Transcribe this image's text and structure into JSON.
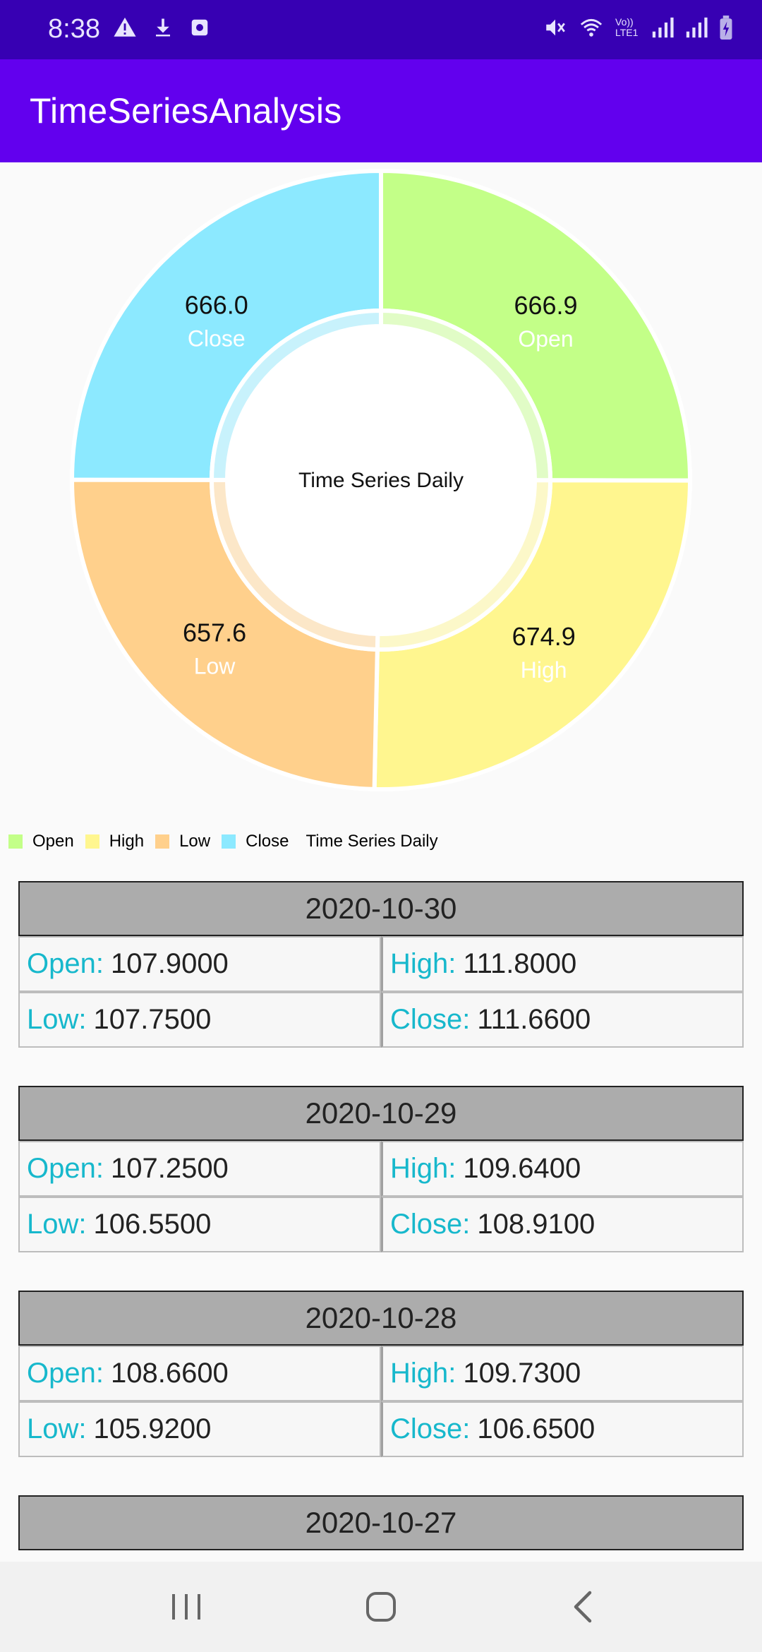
{
  "status_bar": {
    "time": "8:38",
    "left_icons": [
      "warning-icon",
      "download-icon",
      "camera-icon"
    ],
    "right_icons": [
      "mute-icon",
      "wifi-icon",
      "volte-icon",
      "signal-icon",
      "signal-icon",
      "battery-icon"
    ],
    "volte_text": "Vo)) LTE1"
  },
  "app_bar": {
    "title": "TimeSeriesAnalysis"
  },
  "chart_data": {
    "type": "pie",
    "center_text": "Time Series Daily",
    "description": "Time Series Daily",
    "categories": [
      "Open",
      "High",
      "Low",
      "Close"
    ],
    "values": [
      666.9,
      674.9,
      657.6,
      666.0
    ],
    "value_labels": [
      "666.9",
      "674.9",
      "657.6",
      "666.0"
    ],
    "colors": [
      "#c3ff88",
      "#fff68f",
      "#ffd08c",
      "#8ce9ff"
    ],
    "legend_placement": "bottom-left"
  },
  "cards": [
    {
      "date": "2020-10-30",
      "open_label": "Open:",
      "open": "107.9000",
      "high_label": "High:",
      "high": "111.8000",
      "low_label": "Low:",
      "low": "107.7500",
      "close_label": "Close:",
      "close": "111.6600"
    },
    {
      "date": "2020-10-29",
      "open_label": "Open:",
      "open": "107.2500",
      "high_label": "High:",
      "high": "109.6400",
      "low_label": "Low:",
      "low": "106.5500",
      "close_label": "Close:",
      "close": "108.9100"
    },
    {
      "date": "2020-10-28",
      "open_label": "Open:",
      "open": "108.6600",
      "high_label": "High:",
      "high": "109.7300",
      "low_label": "Low:",
      "low": "105.9200",
      "close_label": "Close:",
      "close": "106.6500"
    },
    {
      "date": "2020-10-27"
    }
  ],
  "nav_bar": {
    "buttons": [
      "recents-icon",
      "home-icon",
      "back-icon"
    ]
  }
}
